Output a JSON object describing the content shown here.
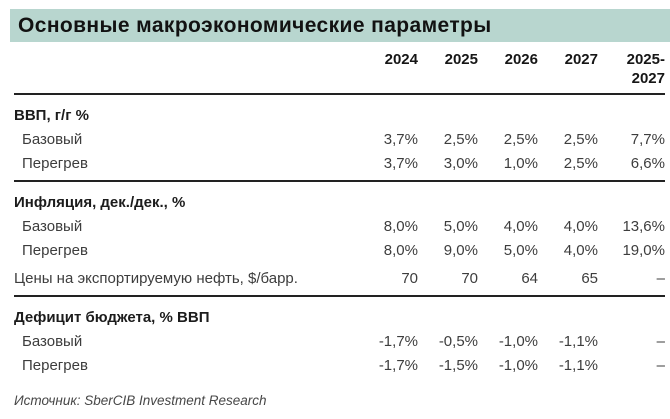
{
  "title": "Основные макроэкономические параметры",
  "columns": [
    "2024",
    "2025",
    "2026",
    "2027",
    "2025-2027"
  ],
  "sections": [
    {
      "header": "ВВП, г/г %",
      "rows": [
        {
          "label": "Базовый",
          "values": [
            "3,7%",
            "2,5%",
            "2,5%",
            "2,5%",
            "7,7%"
          ]
        },
        {
          "label": "Перегрев",
          "values": [
            "3,7%",
            "3,0%",
            "1,0%",
            "2,5%",
            "6,6%"
          ]
        }
      ]
    },
    {
      "header": "Инфляция, дек./дек., %",
      "rows": [
        {
          "label": "Базовый",
          "values": [
            "8,0%",
            "5,0%",
            "4,0%",
            "4,0%",
            "13,6%"
          ]
        },
        {
          "label": "Перегрев",
          "values": [
            "8,0%",
            "9,0%",
            "5,0%",
            "4,0%",
            "19,0%"
          ]
        },
        {
          "label": "Цены на экспортируемую нефть, $/барр.",
          "values": [
            "70",
            "70",
            "64",
            "65",
            "–"
          ]
        }
      ]
    },
    {
      "header": "Дефицит бюджета, % ВВП",
      "rows": [
        {
          "label": "Базовый",
          "values": [
            "-1,7%",
            "-0,5%",
            "-1,0%",
            "-1,1%",
            "–"
          ]
        },
        {
          "label": "Перегрев",
          "values": [
            "-1,7%",
            "-1,5%",
            "-1,0%",
            "-1,1%",
            "–"
          ]
        }
      ]
    }
  ],
  "source": "Источник: SberCIB Investment Research",
  "colors": {
    "title_bar_bg": "#b8d6cf",
    "title_text": "#121212",
    "rule": "#222222",
    "body_text": "#3d3d3d",
    "source_text": "#474747"
  }
}
